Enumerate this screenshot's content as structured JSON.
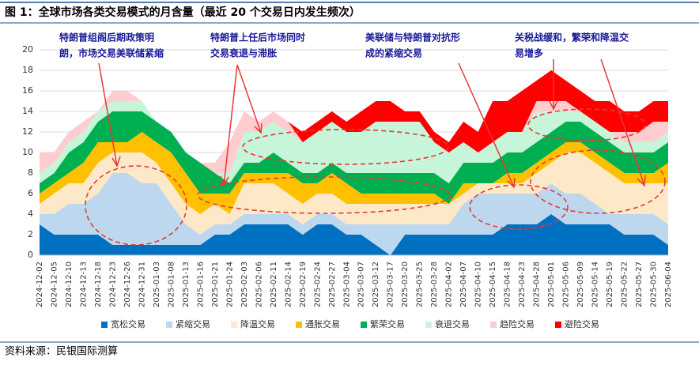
{
  "chart_data": {
    "type": "stacked_area",
    "title": "图 1：全球市场各类交易模式的月含量（最近 20 个交易日内发生频次）",
    "source": "资料来源：民银国际测算",
    "annotations": [
      {
        "lines": [
          "特朗普组阁后期政策明",
          "朗，市场交易美联储紧缩"
        ]
      },
      {
        "lines": [
          "特朗普上任后市场同时",
          "交易衰退与滞胀"
        ]
      },
      {
        "lines": [
          "美联储与特朗普对抗形",
          "成的紧缩交易"
        ]
      },
      {
        "lines": [
          "关税战缓和，繁荣和降温交",
          "易增多"
        ]
      }
    ],
    "categories": [
      "2024-12-02",
      "2024-12-05",
      "2024-12-10",
      "2024-12-13",
      "2024-12-18",
      "2024-12-23",
      "2024-12-26",
      "2024-12-31",
      "2025-01-03",
      "2025-01-08",
      "2025-01-13",
      "2025-01-16",
      "2025-01-21",
      "2025-01-24",
      "2025-02-03",
      "2025-02-06",
      "2025-02-11",
      "2025-02-14",
      "2025-02-19",
      "2025-02-24",
      "2025-02-27",
      "2025-03-04",
      "2025-03-07",
      "2025-03-12",
      "2025-03-17",
      "2025-03-20",
      "2025-03-25",
      "2025-03-28",
      "2025-04-02",
      "2025-04-07",
      "2025-04-10",
      "2025-04-15",
      "2025-04-18",
      "2025-04-23",
      "2025-04-28",
      "2025-05-01",
      "2025-05-06",
      "2025-05-09",
      "2025-05-14",
      "2025-05-19",
      "2025-05-22",
      "2025-05-27",
      "2025-05-30",
      "2025-06-04"
    ],
    "series": [
      {
        "name": "宽松交易",
        "color": "#0070c0",
        "values": [
          3,
          2,
          2,
          2,
          2,
          1,
          1,
          1,
          1,
          1,
          1,
          1,
          2,
          2,
          3,
          3,
          3,
          3,
          2,
          3,
          3,
          2,
          2,
          1,
          0,
          2,
          2,
          2,
          2,
          2,
          2,
          2,
          3,
          3,
          3,
          4,
          3,
          3,
          3,
          3,
          2,
          2,
          2,
          1
        ]
      },
      {
        "name": "紧缩交易",
        "color": "#bdd7ee",
        "values": [
          1,
          2,
          3,
          3,
          4,
          7,
          7,
          6,
          6,
          4,
          2,
          1,
          1,
          1,
          1,
          1,
          1,
          1,
          1,
          1,
          1,
          1,
          1,
          2,
          3,
          1,
          1,
          1,
          1,
          3,
          4,
          4,
          3,
          3,
          3,
          3,
          3,
          3,
          2,
          1,
          2,
          2,
          2,
          2
        ]
      },
      {
        "name": "降温交易",
        "color": "#fde9c8",
        "values": [
          1,
          2,
          2,
          2,
          3,
          2,
          2,
          3,
          2,
          2,
          2,
          2,
          2,
          1,
          3,
          3,
          3,
          2,
          2,
          2,
          2,
          2,
          2,
          2,
          2,
          2,
          2,
          2,
          2,
          1,
          1,
          1,
          1,
          1,
          2,
          2,
          4,
          4,
          4,
          4,
          3,
          3,
          3,
          4
        ]
      },
      {
        "name": "通胀交易",
        "color": "#ffc000",
        "values": [
          1,
          1,
          1,
          2,
          2,
          1,
          1,
          2,
          2,
          3,
          3,
          2,
          1,
          2,
          1,
          1,
          1,
          2,
          2,
          1,
          2,
          2,
          1,
          1,
          1,
          1,
          1,
          1,
          0,
          1,
          0,
          0,
          1,
          1,
          1,
          1,
          1,
          1,
          1,
          1,
          1,
          1,
          1,
          2
        ]
      },
      {
        "name": "繁荣交易",
        "color": "#00b050",
        "values": [
          1,
          1,
          2,
          2,
          2,
          3,
          3,
          2,
          2,
          2,
          2,
          3,
          2,
          1,
          1,
          1,
          2,
          1,
          1,
          1,
          1,
          1,
          2,
          2,
          2,
          2,
          2,
          2,
          2,
          2,
          2,
          2,
          2,
          2,
          2,
          2,
          2,
          2,
          2,
          2,
          2,
          2,
          2,
          2
        ]
      },
      {
        "name": "衰退交易",
        "color": "#c6f5d9",
        "values": [
          1,
          1,
          1,
          1,
          1,
          1,
          1,
          1,
          0,
          0,
          0,
          0,
          0,
          1,
          3,
          3,
          3,
          3,
          3,
          4,
          4,
          4,
          4,
          5,
          5,
          5,
          5,
          3,
          3,
          2,
          1,
          2,
          2,
          2,
          3,
          2,
          1,
          1,
          1,
          1,
          1,
          1,
          1,
          1
        ]
      },
      {
        "name": "趋险交易",
        "color": "#ffccd0",
        "values": [
          2,
          1,
          1,
          1,
          0,
          1,
          1,
          0,
          0,
          0,
          0,
          0,
          1,
          3,
          2,
          1,
          1,
          1,
          0,
          0,
          0,
          0,
          0,
          0,
          0,
          0,
          0,
          0,
          0,
          0,
          0,
          0,
          0,
          0,
          1,
          1,
          1,
          0,
          0,
          0,
          1,
          1,
          2,
          1
        ]
      },
      {
        "name": "避险交易",
        "color": "#ff0000",
        "values": [
          0,
          0,
          0,
          0,
          0,
          0,
          0,
          0,
          0,
          0,
          0,
          0,
          0,
          0,
          0,
          0,
          0,
          0,
          1,
          1,
          1,
          1,
          2,
          2,
          2,
          1,
          1,
          1,
          1,
          2,
          2,
          4,
          3,
          4,
          2,
          3,
          2,
          2,
          2,
          3,
          2,
          2,
          2,
          2
        ]
      }
    ],
    "ylim": [
      0,
      20
    ],
    "yticks": [
      0,
      2,
      4,
      6,
      8,
      10,
      12,
      14,
      16,
      18,
      20
    ],
    "grid": true
  }
}
